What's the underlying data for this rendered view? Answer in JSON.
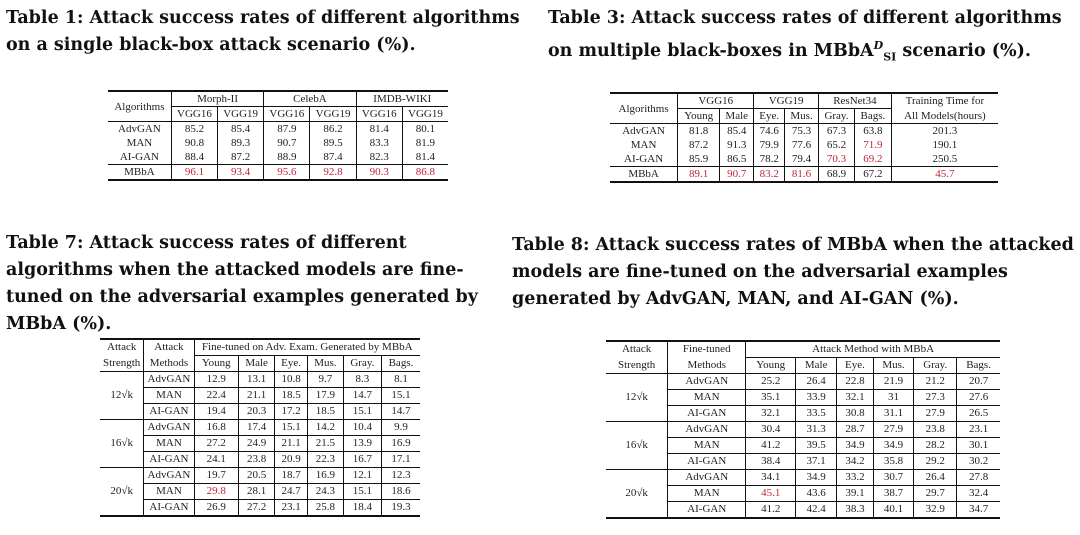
{
  "tables": [
    {
      "caption_num": "Table 1:",
      "caption_text": "Attack success rates of different algorithms on a single black-box attack scenario (%).",
      "headers": {
        "algorithms": "Algorithms",
        "groups": [
          "Morph-II",
          "CelebA",
          "IMDB-WIKI"
        ],
        "subs": [
          "VGG16",
          "VGG19",
          "VGG16",
          "VGG19",
          "VGG16",
          "VGG19"
        ]
      },
      "rows": [
        {
          "name": "AdvGAN",
          "values": [
            "85.2",
            "85.4",
            "87.9",
            "86.2",
            "81.4",
            "80.1"
          ]
        },
        {
          "name": "MAN",
          "values": [
            "90.8",
            "89.3",
            "90.7",
            "89.5",
            "83.3",
            "81.9"
          ]
        },
        {
          "name": "AI-GAN",
          "values": [
            "88.4",
            "87.2",
            "88.9",
            "87.4",
            "82.3",
            "81.4"
          ]
        },
        {
          "name": "MBbA",
          "values": [
            "96.1",
            "93.4",
            "95.6",
            "92.8",
            "90.3",
            "86.8"
          ]
        }
      ]
    },
    {
      "caption_num": "Table 3:",
      "caption_pre": "Attack success rates of different algorithms on multiple black-boxes in MBbA",
      "caption_sup": "D",
      "caption_sub": "SI",
      "caption_post": " scenario (%).",
      "headers": {
        "algorithms": "Algorithms",
        "groups": [
          "VGG16",
          "VGG19",
          "ResNet34"
        ],
        "subs": [
          "Young",
          "Male",
          "Eye.",
          "Mus.",
          "Gray.",
          "Bags."
        ],
        "time_line1": "Training Time for",
        "time_line2": "All Models(hours)"
      },
      "rows": [
        {
          "name": "AdvGAN",
          "values": [
            "81.8",
            "85.4",
            "74.6",
            "75.3",
            "67.3",
            "63.8",
            "201.3"
          ]
        },
        {
          "name": "MAN",
          "values": [
            "87.2",
            "91.3",
            "79.9",
            "77.6",
            "65.2",
            "71.9",
            "190.1"
          ]
        },
        {
          "name": "AI-GAN",
          "values": [
            "85.9",
            "86.5",
            "78.2",
            "79.4",
            "70.3",
            "69.2",
            "250.5"
          ]
        },
        {
          "name": "MBbA",
          "values": [
            "89.1",
            "90.7",
            "83.2",
            "81.6",
            "68.9",
            "67.2",
            "45.7"
          ]
        }
      ]
    },
    {
      "caption_num": "Table 7:",
      "caption_text": "Attack success rates of different algorithms when the attacked models are fine-tuned on the adversarial examples generated by MBbA (%).",
      "headers": {
        "strength_1": "Attack",
        "strength_2": "Strength",
        "methods_1": "Attack",
        "methods_2": "Methods",
        "group": "Fine-tuned on Adv. Exam. Generated by MBbA",
        "subs": [
          "Young",
          "Male",
          "Eye.",
          "Mus.",
          "Gray.",
          "Bags."
        ]
      },
      "groups": [
        {
          "strength": "12√k",
          "rows": [
            {
              "method": "AdvGAN",
              "values": [
                "12.9",
                "13.1",
                "10.8",
                "9.7",
                "8.3",
                "8.1"
              ]
            },
            {
              "method": "MAN",
              "values": [
                "22.4",
                "21.1",
                "18.5",
                "17.9",
                "14.7",
                "15.1"
              ]
            },
            {
              "method": "AI-GAN",
              "values": [
                "19.4",
                "20.3",
                "17.2",
                "18.5",
                "15.1",
                "14.7"
              ]
            }
          ]
        },
        {
          "strength": "16√k",
          "rows": [
            {
              "method": "AdvGAN",
              "values": [
                "16.8",
                "17.4",
                "15.1",
                "14.2",
                "10.4",
                "9.9"
              ]
            },
            {
              "method": "MAN",
              "values": [
                "27.2",
                "24.9",
                "21.1",
                "21.5",
                "13.9",
                "16.9"
              ]
            },
            {
              "method": "AI-GAN",
              "values": [
                "24.1",
                "23.8",
                "20.9",
                "22.3",
                "16.7",
                "17.1"
              ]
            }
          ]
        },
        {
          "strength": "20√k",
          "rows": [
            {
              "method": "AdvGAN",
              "values": [
                "19.7",
                "20.5",
                "18.7",
                "16.9",
                "12.1",
                "12.3"
              ]
            },
            {
              "method": "MAN",
              "values": [
                "29.8",
                "28.1",
                "24.7",
                "24.3",
                "15.1",
                "18.6"
              ]
            },
            {
              "method": "AI-GAN",
              "values": [
                "26.9",
                "27.2",
                "23.1",
                "25.8",
                "18.4",
                "19.3"
              ]
            }
          ]
        }
      ]
    },
    {
      "caption_num": "Table 8:",
      "caption_text": "Attack success rates of MBbA when the attacked models are fine-tuned on the adversarial examples generated by AdvGAN, MAN, and AI-GAN (%).",
      "headers": {
        "strength_1": "Attack",
        "strength_2": "Strength",
        "methods_1": "Fine-tuned",
        "methods_2": "Methods",
        "group": "Attack Method with MBbA",
        "subs": [
          "Young",
          "Male",
          "Eye.",
          "Mus.",
          "Gray.",
          "Bags."
        ]
      },
      "groups": [
        {
          "strength": "12√k",
          "rows": [
            {
              "method": "AdvGAN",
              "values": [
                "25.2",
                "26.4",
                "22.8",
                "21.9",
                "21.2",
                "20.7"
              ]
            },
            {
              "method": "MAN",
              "values": [
                "35.1",
                "33.9",
                "32.1",
                "31",
                "27.3",
                "27.6"
              ]
            },
            {
              "method": "AI-GAN",
              "values": [
                "32.1",
                "33.5",
                "30.8",
                "31.1",
                "27.9",
                "26.5"
              ]
            }
          ]
        },
        {
          "strength": "16√k",
          "rows": [
            {
              "method": "AdvGAN",
              "values": [
                "30.4",
                "31.3",
                "28.7",
                "27.9",
                "23.8",
                "23.1"
              ]
            },
            {
              "method": "MAN",
              "values": [
                "41.2",
                "39.5",
                "34.9",
                "34.9",
                "28.2",
                "30.1"
              ]
            },
            {
              "method": "AI-GAN",
              "values": [
                "38.4",
                "37.1",
                "34.2",
                "35.8",
                "29.2",
                "30.2"
              ]
            }
          ]
        },
        {
          "strength": "20√k",
          "rows": [
            {
              "method": "AdvGAN",
              "values": [
                "34.1",
                "34.9",
                "33.2",
                "30.7",
                "26.4",
                "27.8"
              ]
            },
            {
              "method": "MAN",
              "values": [
                "45.1",
                "43.6",
                "39.1",
                "38.7",
                "29.7",
                "32.4"
              ]
            },
            {
              "method": "AI-GAN",
              "values": [
                "41.2",
                "42.4",
                "38.3",
                "40.1",
                "32.9",
                "34.7"
              ]
            }
          ]
        }
      ]
    }
  ]
}
